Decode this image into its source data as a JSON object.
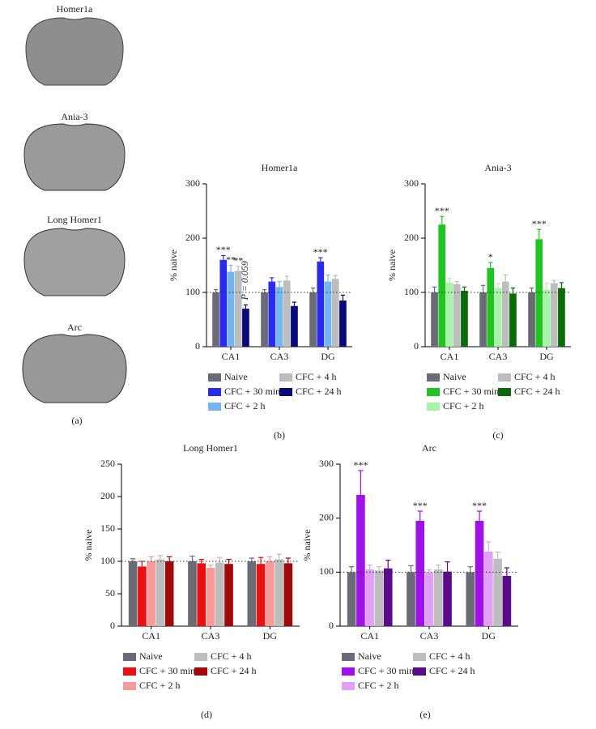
{
  "images": {
    "labels": [
      "Homer1a",
      "Ania-3",
      "Long Homer1",
      "Arc"
    ],
    "panel_label": "(a)"
  },
  "chart_data": [
    {
      "type": "bar",
      "title": "Homer1a",
      "y_label": "% naive",
      "panel_label": "(b)",
      "categories": [
        "CA1",
        "CA3",
        "DG"
      ],
      "ylim": [
        0,
        300
      ],
      "yticks": [
        0,
        100,
        200,
        300
      ],
      "reference_line": 100,
      "series": [
        {
          "name": "Naive",
          "color": "#6b6b78",
          "values": [
            100,
            100,
            100
          ],
          "errors": [
            5,
            5,
            8
          ]
        },
        {
          "name": "CFC + 30 min",
          "color": "#2b2bef",
          "values": [
            160,
            120,
            157
          ],
          "errors": [
            8,
            7,
            7
          ]
        },
        {
          "name": "CFC + 2 h",
          "color": "#74b6f3",
          "values": [
            138,
            110,
            120
          ],
          "errors": [
            12,
            10,
            12
          ]
        },
        {
          "name": "CFC + 4 h",
          "color": "#bdbdbd",
          "values": [
            140,
            122,
            125
          ],
          "errors": [
            8,
            8,
            6
          ]
        },
        {
          "name": "CFC + 24 h",
          "color": "#0a0a78",
          "values": [
            70,
            75,
            85
          ],
          "errors": [
            7,
            7,
            10
          ]
        }
      ],
      "annotations": [
        {
          "text": "***",
          "category": 0,
          "series": 1
        },
        {
          "text": "**",
          "category": 0,
          "series": 2
        },
        {
          "text": "**",
          "category": 0,
          "series": 3
        },
        {
          "text": "P = 0.059",
          "category": 0,
          "series": 4,
          "rotated": true
        },
        {
          "text": "***",
          "category": 2,
          "series": 1
        }
      ]
    },
    {
      "type": "bar",
      "title": "Ania-3",
      "y_label": "% naive",
      "panel_label": "(c)",
      "categories": [
        "CA1",
        "CA3",
        "DG"
      ],
      "ylim": [
        0,
        300
      ],
      "yticks": [
        0,
        100,
        200,
        300
      ],
      "reference_line": 100,
      "series": [
        {
          "name": "Naive",
          "color": "#6b6b78",
          "values": [
            100,
            100,
            100
          ],
          "errors": [
            10,
            13,
            8
          ]
        },
        {
          "name": "CFC + 30 min",
          "color": "#1fc41f",
          "values": [
            225,
            145,
            198
          ],
          "errors": [
            15,
            10,
            18
          ]
        },
        {
          "name": "CFC + 2 h",
          "color": "#a6f5a6",
          "values": [
            118,
            108,
            105
          ],
          "errors": [
            8,
            8,
            12
          ]
        },
        {
          "name": "CFC + 4 h",
          "color": "#bdbdbd",
          "values": [
            115,
            120,
            117
          ],
          "errors": [
            5,
            12,
            5
          ]
        },
        {
          "name": "CFC + 24 h",
          "color": "#0b6b0b",
          "values": [
            103,
            98,
            108
          ],
          "errors": [
            7,
            10,
            10
          ]
        }
      ],
      "annotations": [
        {
          "text": "***",
          "category": 0,
          "series": 1
        },
        {
          "text": "*",
          "category": 1,
          "series": 1
        },
        {
          "text": "***",
          "category": 2,
          "series": 1
        }
      ]
    },
    {
      "type": "bar",
      "title": "Long Homer1",
      "y_label": "% naive",
      "panel_label": "(d)",
      "categories": [
        "CA1",
        "CA3",
        "DG"
      ],
      "ylim": [
        0,
        250
      ],
      "yticks": [
        0,
        50,
        100,
        150,
        200,
        250
      ],
      "reference_line": 100,
      "series": [
        {
          "name": "Naive",
          "color": "#6b6b78",
          "values": [
            100,
            100,
            100
          ],
          "errors": [
            4,
            8,
            5
          ]
        },
        {
          "name": "CFC + 30 min",
          "color": "#e81010",
          "values": [
            92,
            97,
            96
          ],
          "errors": [
            8,
            6,
            10
          ]
        },
        {
          "name": "CFC + 2 h",
          "color": "#f79a9a",
          "values": [
            100,
            90,
            100
          ],
          "errors": [
            7,
            4,
            7
          ]
        },
        {
          "name": "CFC + 4 h",
          "color": "#bdbdbd",
          "values": [
            103,
            98,
            103
          ],
          "errors": [
            6,
            8,
            8
          ]
        },
        {
          "name": "CFC + 24 h",
          "color": "#a00a0a",
          "values": [
            100,
            96,
            97
          ],
          "errors": [
            7,
            7,
            8
          ]
        }
      ],
      "annotations": []
    },
    {
      "type": "bar",
      "title": "Arc",
      "y_label": "% naive",
      "panel_label": "(e)",
      "categories": [
        "CA1",
        "CA3",
        "DG"
      ],
      "ylim": [
        0,
        300
      ],
      "yticks": [
        0,
        100,
        200,
        300
      ],
      "reference_line": 100,
      "series": [
        {
          "name": "Naive",
          "color": "#6b6b78",
          "values": [
            100,
            100,
            100
          ],
          "errors": [
            10,
            12,
            10
          ]
        },
        {
          "name": "CFC + 30 min",
          "color": "#a010e8",
          "values": [
            243,
            195,
            195
          ],
          "errors": [
            45,
            18,
            18
          ]
        },
        {
          "name": "CFC + 2 h",
          "color": "#e0a0f5",
          "values": [
            105,
            99,
            138
          ],
          "errors": [
            8,
            5,
            18
          ]
        },
        {
          "name": "CFC + 4 h",
          "color": "#bdbdbd",
          "values": [
            103,
            105,
            125
          ],
          "errors": [
            7,
            8,
            12
          ]
        },
        {
          "name": "CFC + 24 h",
          "color": "#5a0a8a",
          "values": [
            107,
            101,
            93
          ],
          "errors": [
            15,
            18,
            15
          ]
        }
      ],
      "annotations": [
        {
          "text": "***",
          "category": 0,
          "series": 1
        },
        {
          "text": "***",
          "category": 1,
          "series": 1
        },
        {
          "text": "***",
          "category": 2,
          "series": 1
        }
      ]
    }
  ]
}
